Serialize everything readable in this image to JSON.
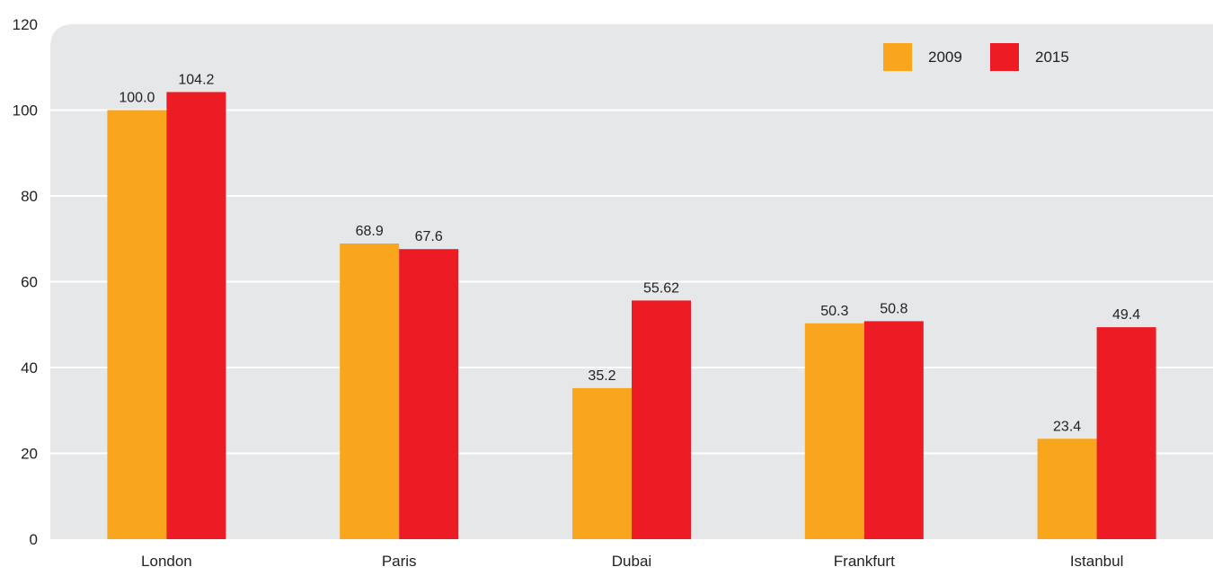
{
  "chart_data": {
    "type": "bar",
    "categories": [
      "London",
      "Paris",
      "Dubai",
      "Frankfurt",
      "Istanbul"
    ],
    "series": [
      {
        "name": "2009",
        "color": "#F9A61C",
        "values": [
          100.0,
          68.9,
          35.2,
          50.3,
          23.4
        ],
        "labels": [
          "100.0",
          "68.9",
          "35.2",
          "50.3",
          "23.4"
        ]
      },
      {
        "name": "2015",
        "color": "#ED1C24",
        "values": [
          104.2,
          67.6,
          55.62,
          50.8,
          49.4
        ],
        "labels": [
          "104.2",
          "67.6",
          "55.62",
          "50.8",
          "49.4"
        ]
      }
    ],
    "title": "",
    "xlabel": "",
    "ylabel": "",
    "ylim": [
      0,
      120
    ],
    "yticks": [
      0,
      20,
      40,
      60,
      80,
      100,
      120
    ],
    "grid": true,
    "legend_position": "top-right",
    "plot_background": "#E6E7E8",
    "gridline_color": "#FFFFFF"
  }
}
